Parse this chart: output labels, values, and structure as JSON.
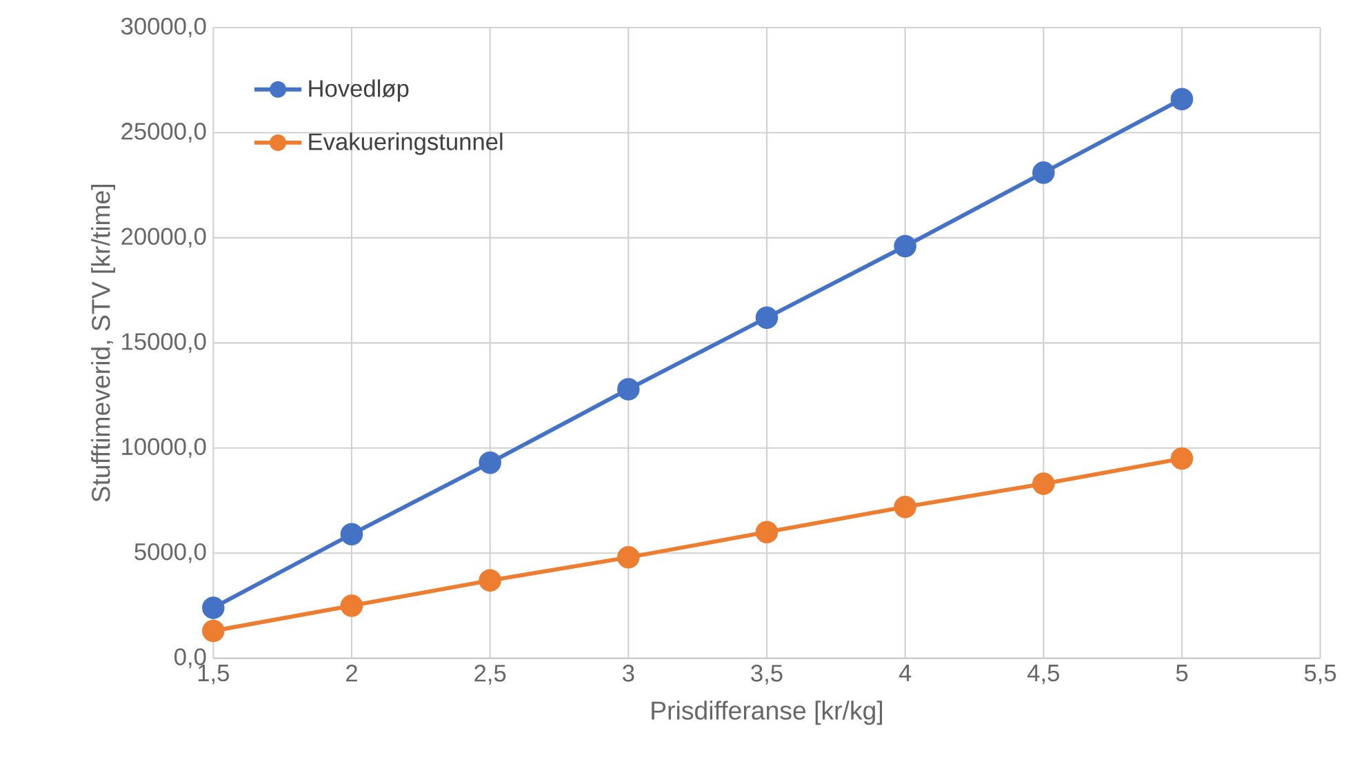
{
  "chart_data": {
    "type": "line",
    "xlabel": "Prisdifferanse [kr/kg]",
    "ylabel": "Stufftimeverid, STV [kr/time]",
    "x": [
      1.5,
      2,
      2.5,
      3,
      3.5,
      4,
      4.5,
      5
    ],
    "series": [
      {
        "name": "Hovedløp",
        "color": "#4472c4",
        "values": [
          2400,
          5900,
          9300,
          12800,
          16200,
          19600,
          23100,
          26600
        ]
      },
      {
        "name": "Evakueringstunnel",
        "color": "#ed7d31",
        "values": [
          1300,
          2500,
          3700,
          4800,
          6000,
          7200,
          8300,
          9500
        ]
      }
    ],
    "xlim": [
      1.5,
      5.5
    ],
    "xticks": [
      {
        "value": 1.5,
        "label": "1,5"
      },
      {
        "value": 2,
        "label": "2"
      },
      {
        "value": 2.5,
        "label": "2,5"
      },
      {
        "value": 3,
        "label": "3"
      },
      {
        "value": 3.5,
        "label": "3,5"
      },
      {
        "value": 4,
        "label": "4"
      },
      {
        "value": 4.5,
        "label": "4,5"
      },
      {
        "value": 5,
        "label": "5"
      },
      {
        "value": 5.5,
        "label": "5,5"
      }
    ],
    "ylim": [
      0,
      30000
    ],
    "yticks": [
      {
        "value": 0,
        "label": "0,0"
      },
      {
        "value": 5000,
        "label": "5000,0"
      },
      {
        "value": 10000,
        "label": "10000,0"
      },
      {
        "value": 15000,
        "label": "15000,0"
      },
      {
        "value": 20000,
        "label": "20000,0"
      },
      {
        "value": 25000,
        "label": "25000,0"
      },
      {
        "value": 30000,
        "label": "30000,0"
      }
    ],
    "grid": true,
    "legend": "top left",
    "marker": "circle",
    "line_style": "solid"
  }
}
